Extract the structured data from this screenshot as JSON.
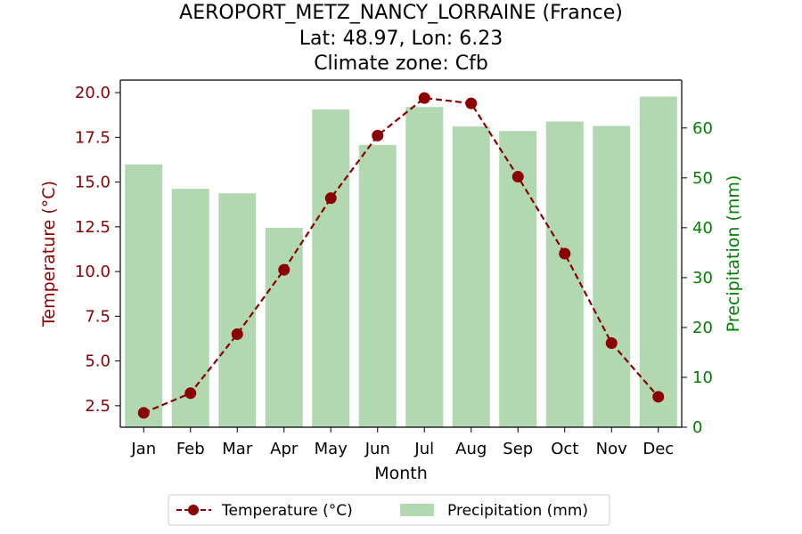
{
  "chart_data": {
    "type": "bar+line",
    "title": [
      "AEROPORT_METZ_NANCY_LORRAINE (France)",
      "Lat: 48.97, Lon: 6.23",
      "Climate zone: Cfb"
    ],
    "xlabel": "Month",
    "categories": [
      "Jan",
      "Feb",
      "Mar",
      "Apr",
      "May",
      "Jun",
      "Jul",
      "Aug",
      "Sep",
      "Oct",
      "Nov",
      "Dec"
    ],
    "temperature": {
      "name": "Temperature (°C)",
      "axis_label": "Temperature (°C)",
      "color": "#8b0000",
      "values": [
        2.1,
        3.2,
        6.5,
        10.1,
        14.1,
        17.6,
        19.7,
        19.4,
        15.3,
        11.0,
        6.0,
        3.0
      ],
      "ylim": [
        1.3,
        20.7
      ],
      "ticks": [
        2.5,
        5.0,
        7.5,
        10.0,
        12.5,
        15.0,
        17.5,
        20.0
      ],
      "tick_labels": [
        "2.5",
        "5.0",
        "7.5",
        "10.0",
        "12.5",
        "15.0",
        "17.5",
        "20.0"
      ]
    },
    "precipitation": {
      "name": "Precipitation (mm)",
      "axis_label": "Precipitation (mm)",
      "color": "#008000",
      "bar_color": "#b2d8b2",
      "values": [
        52.7,
        47.8,
        46.9,
        40.0,
        63.7,
        56.6,
        64.2,
        60.3,
        59.4,
        61.3,
        60.4,
        66.3
      ],
      "ylim": [
        0,
        69.6
      ],
      "ticks": [
        0,
        10,
        20,
        30,
        40,
        50,
        60
      ],
      "tick_labels": [
        "0",
        "10",
        "20",
        "30",
        "40",
        "50",
        "60"
      ]
    },
    "legend": {
      "placement": "bottom-center",
      "entries": [
        "Temperature (°C)",
        "Precipitation (mm)"
      ]
    },
    "grid": false
  }
}
